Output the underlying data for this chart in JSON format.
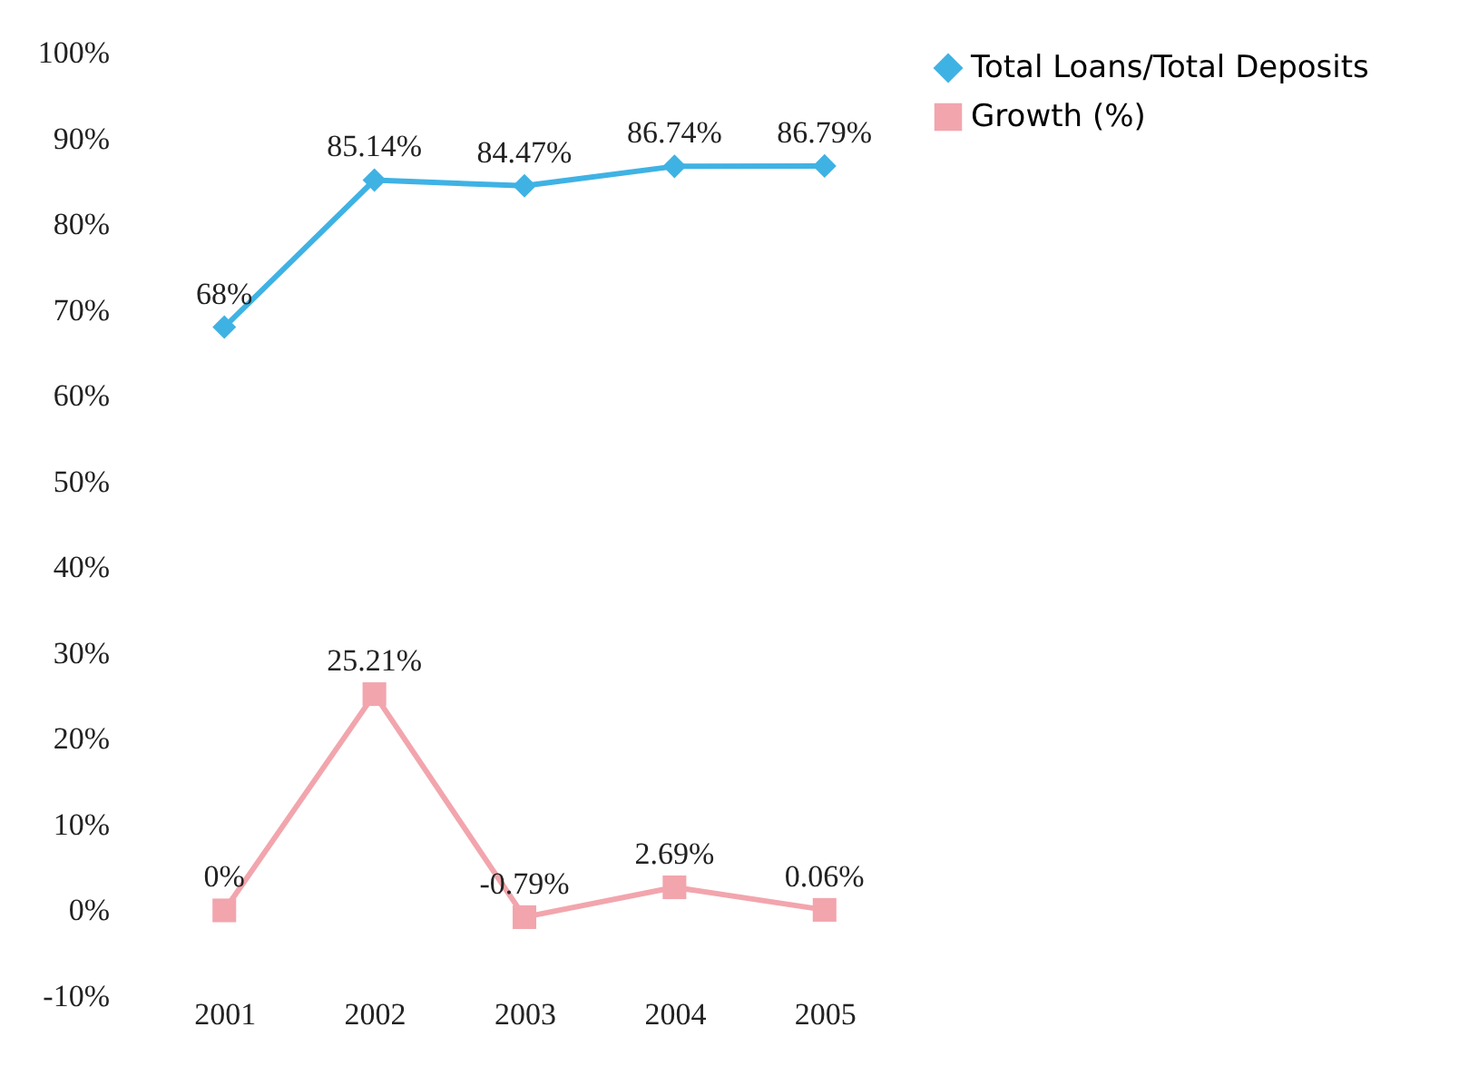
{
  "chart_data": {
    "type": "line",
    "categories": [
      "2001",
      "2002",
      "2003",
      "2004",
      "2005"
    ],
    "series": [
      {
        "name": "Total Loans/Total Deposits",
        "color": "#3fb2e4",
        "marker": "diamond",
        "values": [
          68,
          85.14,
          84.47,
          86.74,
          86.79
        ],
        "value_labels": [
          "68%",
          "85.14%",
          "84.47%",
          "86.74%",
          "86.79%"
        ]
      },
      {
        "name": "Growth (%)",
        "color": "#f2a5ad",
        "marker": "square",
        "values": [
          0,
          25.21,
          -0.79,
          2.69,
          0.06
        ],
        "value_labels": [
          "0%",
          "25.21%",
          "-0.79%",
          "2.69%",
          "0.06%"
        ]
      }
    ],
    "ylim": [
      -10,
      100
    ],
    "yticks": [
      {
        "value": -10,
        "label": "-10%"
      },
      {
        "value": 0,
        "label": "0%"
      },
      {
        "value": 10,
        "label": "10%"
      },
      {
        "value": 20,
        "label": "20%"
      },
      {
        "value": 30,
        "label": "30%"
      },
      {
        "value": 40,
        "label": "40%"
      },
      {
        "value": 50,
        "label": "50%"
      },
      {
        "value": 60,
        "label": "60%"
      },
      {
        "value": 70,
        "label": "70%"
      },
      {
        "value": 80,
        "label": "80%"
      },
      {
        "value": 90,
        "label": "90%"
      },
      {
        "value": 100,
        "label": "100%"
      }
    ],
    "grid": false,
    "legend": "right"
  }
}
